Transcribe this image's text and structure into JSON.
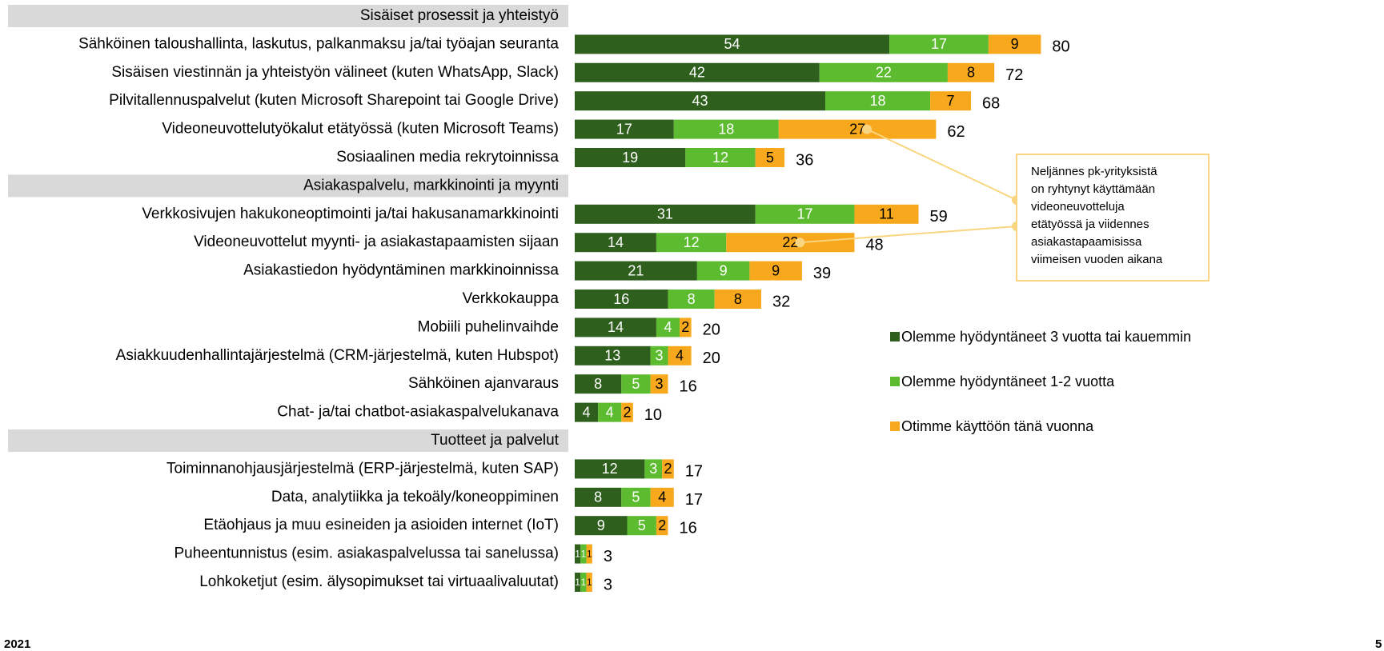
{
  "chart_data": {
    "type": "bar",
    "orientation": "horizontal",
    "stacked": true,
    "groups": [
      {
        "name": "Sisäiset prosessit ja yhteistyö",
        "categories": [
          "Sähköinen taloushallinta, laskutus, palkanmaksu ja/tai työajan seuranta",
          "Sisäisen viestinnän ja yhteistyön välineet (kuten WhatsApp, Slack)",
          "Pilvitallennuspalvelut (kuten Microsoft Sharepoint tai Google Drive)",
          "Videoneuvottelutyökalut etätyössä (kuten Microsoft Teams)",
          "Sosiaalinen media rekrytoinnissa"
        ]
      },
      {
        "name": "Asiakaspalvelu, markkinointi ja myynti",
        "categories": [
          "Verkkosivujen hakukoneoptimointi ja/tai hakusanamarkkinointi",
          "Videoneuvottelut myynti- ja asiakastapaamisten sijaan",
          "Asiakastiedon hyödyntäminen markkinoinnissa",
          "Verkkokauppa",
          "Mobiili puhelinvaihde",
          "Asiakkuudenhallintajärjestelmä (CRM-järjestelmä, kuten Hubspot)",
          "Sähköinen ajanvaraus",
          "Chat- ja/tai chatbot-asiakaspalvelukanava"
        ]
      },
      {
        "name": "Tuotteet ja palvelut",
        "categories": [
          "Toiminnanohjausjärjestelmä (ERP-järjestelmä, kuten SAP)",
          "Data, analytiikka ja tekoäly/koneoppiminen",
          "Etäohjaus ja muu esineiden ja asioiden internet (IoT)",
          "Puheentunnistus (esim. asiakaspalvelussa tai sanelussa)",
          "Lohkoketjut (esim. älysopimukset tai virtuaalivaluutat)"
        ]
      }
    ],
    "series": [
      {
        "name": "Olemme hyödyntäneet 3 vuotta tai kauemmin",
        "color": "#2e5f1d",
        "values": [
          54,
          42,
          43,
          17,
          19,
          31,
          14,
          21,
          16,
          14,
          13,
          8,
          4,
          12,
          8,
          9,
          1,
          1
        ]
      },
      {
        "name": "Olemme hyödyntäneet 1-2 vuotta",
        "color": "#5dbb2f",
        "values": [
          17,
          22,
          18,
          18,
          12,
          17,
          12,
          9,
          8,
          4,
          3,
          5,
          4,
          3,
          5,
          5,
          1,
          1
        ]
      },
      {
        "name": "Otimme käyttöön tänä vuonna",
        "color": "#f8a81c",
        "values": [
          9,
          8,
          7,
          27,
          5,
          11,
          22,
          9,
          8,
          2,
          4,
          3,
          2,
          2,
          4,
          2,
          1,
          1
        ]
      }
    ],
    "totals": [
      80,
      72,
      68,
      62,
      36,
      59,
      48,
      39,
      32,
      20,
      20,
      16,
      10,
      17,
      17,
      16,
      3,
      3
    ],
    "annotation": [
      "Neljännes pk-yrityksistä",
      "on ryhtynyt käyttämään",
      "videoneuvotteluja",
      "etätyössä ja viidennes",
      "asiakastapaamisissa",
      "viimeisen vuoden aikana"
    ],
    "footer": "2021",
    "page_number": "5"
  }
}
